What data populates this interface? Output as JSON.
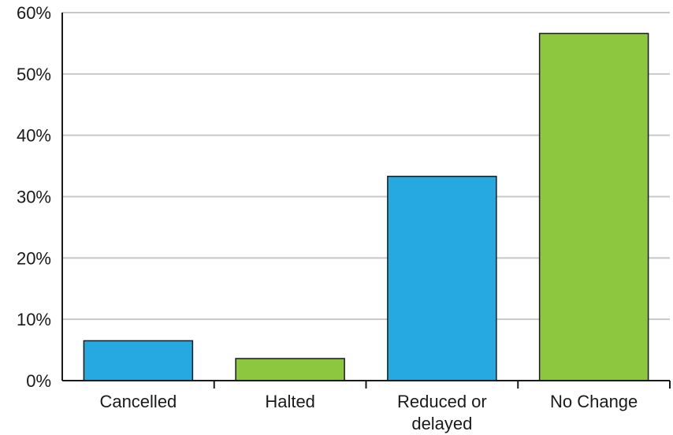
{
  "chart_data": {
    "type": "bar",
    "title": "",
    "xlabel": "",
    "ylabel": "",
    "categories": [
      [
        "Cancelled"
      ],
      [
        "Halted"
      ],
      [
        "Reduced or",
        "delayed"
      ],
      [
        "No Change"
      ]
    ],
    "values": [
      6.5,
      3.6,
      33.3,
      56.6
    ],
    "bar_colors": [
      "#25a9e0",
      "#8dc63f",
      "#25a9e0",
      "#8dc63f"
    ],
    "ylim": [
      0,
      60
    ],
    "yticks": [
      0,
      10,
      20,
      30,
      40,
      50,
      60
    ],
    "ytick_labels": [
      "0%",
      "10%",
      "20%",
      "30%",
      "40%",
      "50%",
      "60%"
    ],
    "grid": true,
    "legend": "none"
  }
}
